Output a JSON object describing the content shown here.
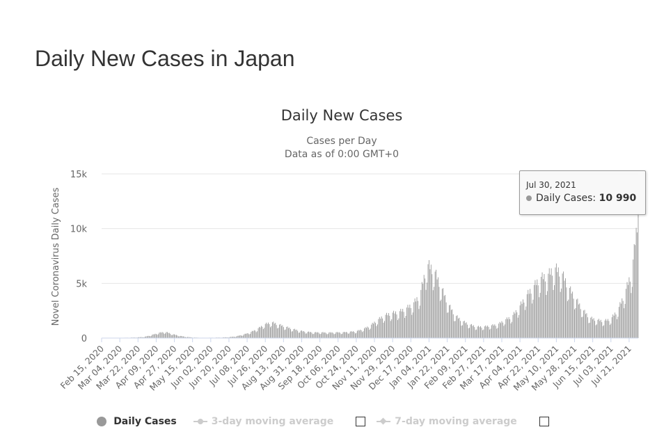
{
  "page": {
    "title": "Daily New Cases in Japan"
  },
  "colors": {
    "bar": "#999999",
    "grid": "#e6e6e6",
    "axis_text": "#666666",
    "title_text": "#333333",
    "hidden_series": "#cccccc"
  },
  "chart_data": {
    "type": "bar",
    "title": "Daily New Cases",
    "subtitle_lines": [
      "Cases per Day",
      "Data as of 0:00 GMT+0"
    ],
    "ylabel": "Novel Coronavirus Daily Cases",
    "xlabel": "",
    "ylim": [
      0,
      15000
    ],
    "y_ticks": [
      0,
      5000,
      10000,
      15000
    ],
    "y_tick_labels": [
      "0",
      "5k",
      "10k",
      "15k"
    ],
    "grid": true,
    "x_start": "2020-02-15",
    "x_end": "2021-07-30",
    "x_tick_labels": [
      "Feb 15, 2020",
      "Mar 04, 2020",
      "Mar 22, 2020",
      "Apr 09, 2020",
      "Apr 27, 2020",
      "May 15, 2020",
      "Jun 02, 2020",
      "Jun 20, 2020",
      "Jul 08, 2020",
      "Jul 26, 2020",
      "Aug 13, 2020",
      "Aug 31, 2020",
      "Sep 18, 2020",
      "Oct 06, 2020",
      "Oct 24, 2020",
      "Nov 11, 2020",
      "Nov 29, 2020",
      "Dec 17, 2020",
      "Jan 04, 2021",
      "Jan 22, 2021",
      "Feb 09, 2021",
      "Feb 27, 2021",
      "Mar 17, 2021",
      "Apr 04, 2021",
      "Apr 22, 2021",
      "May 10, 2021",
      "May 28, 2021",
      "Jun 15, 2021",
      "Jul 03, 2021",
      "Jul 21, 2021"
    ],
    "series": [
      {
        "name": "Daily Cases",
        "visible": true,
        "weekly_dates": [
          "2020-02-15",
          "2020-02-22",
          "2020-02-29",
          "2020-03-07",
          "2020-03-14",
          "2020-03-21",
          "2020-03-28",
          "2020-04-04",
          "2020-04-11",
          "2020-04-18",
          "2020-04-25",
          "2020-05-02",
          "2020-05-09",
          "2020-05-16",
          "2020-05-23",
          "2020-05-30",
          "2020-06-06",
          "2020-06-13",
          "2020-06-20",
          "2020-06-27",
          "2020-07-04",
          "2020-07-11",
          "2020-07-18",
          "2020-07-25",
          "2020-08-01",
          "2020-08-08",
          "2020-08-15",
          "2020-08-22",
          "2020-08-29",
          "2020-09-05",
          "2020-09-12",
          "2020-09-19",
          "2020-09-26",
          "2020-10-03",
          "2020-10-10",
          "2020-10-17",
          "2020-10-24",
          "2020-10-31",
          "2020-11-07",
          "2020-11-14",
          "2020-11-21",
          "2020-11-28",
          "2020-12-05",
          "2020-12-12",
          "2020-12-19",
          "2020-12-26",
          "2021-01-02",
          "2021-01-09",
          "2021-01-16",
          "2021-01-23",
          "2021-01-30",
          "2021-02-06",
          "2021-02-13",
          "2021-02-20",
          "2021-02-27",
          "2021-03-06",
          "2021-03-13",
          "2021-03-20",
          "2021-03-27",
          "2021-04-03",
          "2021-04-10",
          "2021-04-17",
          "2021-04-24",
          "2021-05-01",
          "2021-05-08",
          "2021-05-15",
          "2021-05-22",
          "2021-05-29",
          "2021-06-05",
          "2021-06-12",
          "2021-06-19",
          "2021-06-26",
          "2021-07-03",
          "2021-07-10",
          "2021-07-17",
          "2021-07-24",
          "2021-07-30"
        ],
        "weekly_values": [
          5,
          10,
          20,
          30,
          40,
          60,
          100,
          250,
          450,
          550,
          350,
          200,
          100,
          50,
          30,
          30,
          40,
          50,
          80,
          150,
          300,
          500,
          800,
          1200,
          1400,
          1200,
          1000,
          800,
          650,
          550,
          500,
          500,
          480,
          500,
          500,
          550,
          600,
          800,
          1100,
          1600,
          2000,
          2200,
          2300,
          2600,
          3000,
          3800,
          6500,
          6000,
          4500,
          3000,
          2000,
          1500,
          1200,
          1000,
          1000,
          1100,
          1200,
          1600,
          1900,
          2700,
          3700,
          4500,
          5300,
          5500,
          6200,
          5800,
          4500,
          3500,
          2500,
          1800,
          1600,
          1500,
          1700,
          2500,
          4000,
          6000,
          10990
        ],
        "last_point": {
          "date": "Jul 30, 2021",
          "value": 10990
        }
      },
      {
        "name": "3-day moving average",
        "visible": false
      },
      {
        "name": "7-day moving average",
        "visible": false
      }
    ]
  },
  "tooltip": {
    "date": "Jul 30, 2021",
    "series_label": "Daily Cases:",
    "value_text": "10 990"
  },
  "legend": {
    "items": [
      "Daily Cases",
      "3-day moving average",
      "7-day moving average"
    ]
  }
}
